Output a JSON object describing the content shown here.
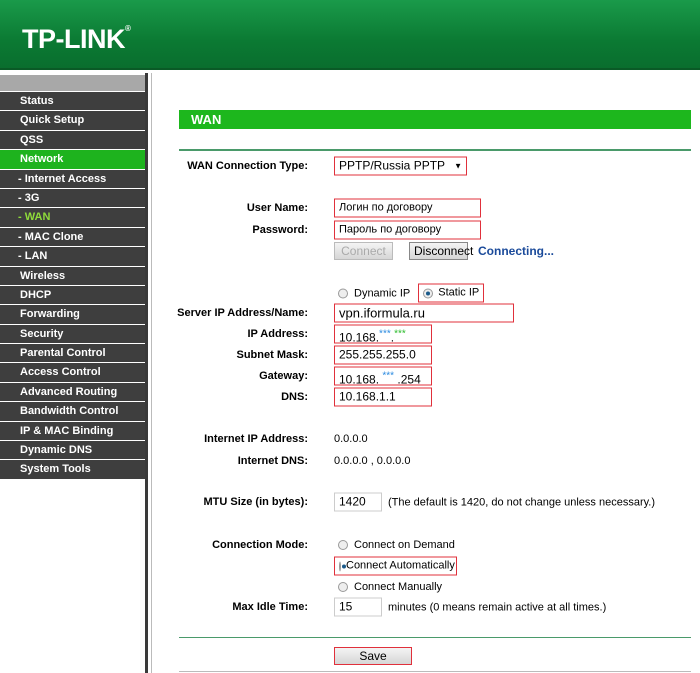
{
  "brand": {
    "logo": "TP-LINK",
    "mark": "®"
  },
  "sidebar": {
    "items": [
      {
        "label": "Status"
      },
      {
        "label": "Quick Setup"
      },
      {
        "label": "QSS"
      },
      {
        "label": "Network",
        "active": true
      },
      {
        "label": "- Internet Access"
      },
      {
        "label": "- 3G"
      },
      {
        "label": "- WAN",
        "current": true
      },
      {
        "label": "- MAC Clone"
      },
      {
        "label": "- LAN"
      },
      {
        "label": "Wireless"
      },
      {
        "label": "DHCP"
      },
      {
        "label": "Forwarding"
      },
      {
        "label": "Security"
      },
      {
        "label": "Parental Control"
      },
      {
        "label": "Access Control"
      },
      {
        "label": "Advanced Routing"
      },
      {
        "label": "Bandwidth Control"
      },
      {
        "label": "IP & MAC Binding"
      },
      {
        "label": "Dynamic DNS"
      },
      {
        "label": "System Tools"
      }
    ]
  },
  "main": {
    "title": "WAN",
    "wan_type": {
      "label": "WAN Connection Type:",
      "value": "PPTP/Russia PPTP"
    },
    "username": {
      "label": "User Name:",
      "value": "Логин по договору"
    },
    "password": {
      "label": "Password:",
      "value": "Пароль по договору"
    },
    "connect_label": "Connect",
    "disconnect_label": "Disconnect",
    "status": "Connecting...",
    "ip_mode": {
      "dynamic": "Dynamic IP",
      "static": "Static IP",
      "selected": "static"
    },
    "server": {
      "label": "Server IP Address/Name:",
      "value": "vpn.iformula.ru"
    },
    "ip": {
      "label": "IP Address:",
      "prefix": "10.168.",
      "mask1": "***",
      "dot": ".",
      "mask2": "***"
    },
    "subnet": {
      "label": "Subnet Mask:",
      "value": "255.255.255.0"
    },
    "gateway": {
      "label": "Gateway:",
      "prefix": "10.168.",
      "mask": "***",
      "suffix": ".254"
    },
    "dns": {
      "label": "DNS:",
      "value": "10.168.1.1"
    },
    "inet_ip": {
      "label": "Internet IP Address:",
      "value": "0.0.0.0"
    },
    "inet_dns": {
      "label": "Internet DNS:",
      "value": "0.0.0.0 , 0.0.0.0"
    },
    "mtu": {
      "label": "MTU Size (in bytes):",
      "value": "1420",
      "hint": "(The default is 1420, do not change unless necessary.)"
    },
    "conn_mode": {
      "label": "Connection Mode:",
      "options": [
        "Connect on Demand",
        "Connect Automatically",
        "Connect Manually"
      ],
      "selected": 1
    },
    "idle": {
      "label": "Max Idle Time:",
      "value": "15",
      "hint": "minutes (0 means remain active at all times.)"
    },
    "save_label": "Save"
  },
  "colors": {
    "brand_green": "#0b7a33",
    "accent_green": "#1db71d",
    "highlight_red": "#e0303b"
  }
}
